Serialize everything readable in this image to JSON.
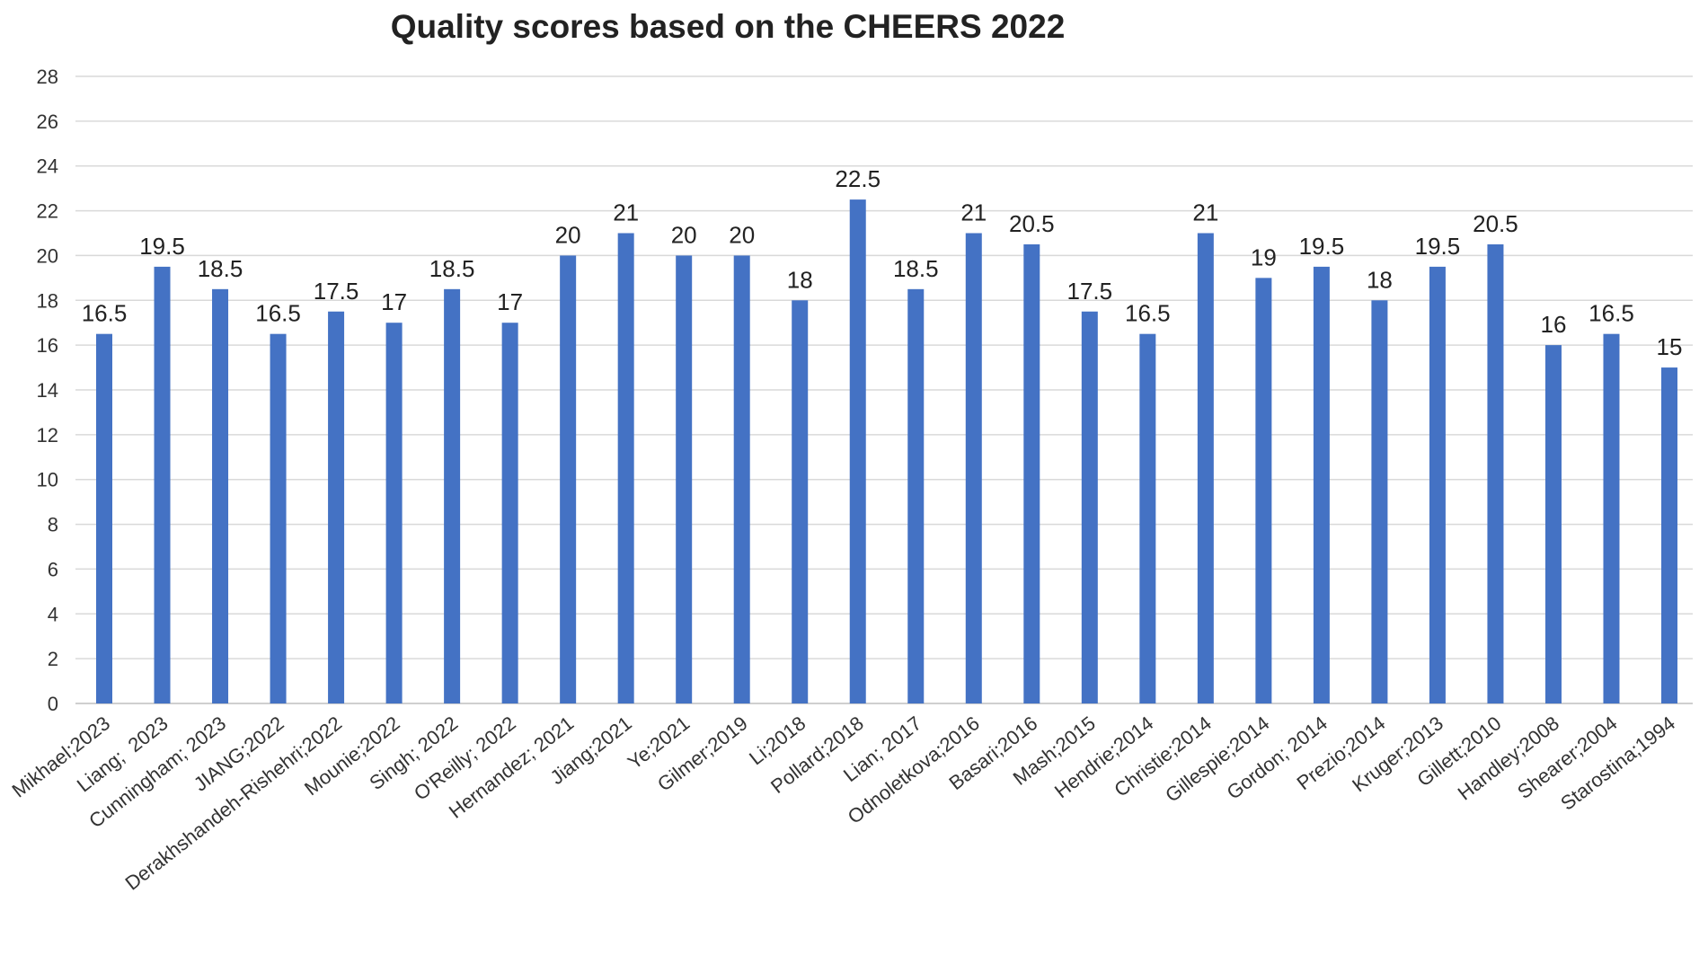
{
  "chart_data": {
    "type": "bar",
    "title": "Quality scores based on the CHEERS 2022",
    "xlabel": "",
    "ylabel": "",
    "ylim": [
      0,
      28
    ],
    "yticks": [
      0,
      2,
      4,
      6,
      8,
      10,
      12,
      14,
      16,
      18,
      20,
      22,
      24,
      26,
      28
    ],
    "grid": true,
    "legend": "none",
    "bar_color": "#4472c4",
    "categories": [
      "Mikhael;2023",
      "Liang;  2023",
      "Cunningham; 2023",
      "JIANG;2022",
      "Derakhshandeh-Rishehri;2022",
      "Mounie;2022",
      "Singh; 2022",
      "O'Reilly; 2022",
      "Hernandez; 2021",
      "Jiang;2021",
      "Ye;2021",
      "Gilmer;2019",
      "Li;2018",
      "Pollard;2018",
      "Lian; 2017",
      "Odnoletkova;2016",
      "Basari;2016",
      "Mash;2015",
      "Hendrie;2014",
      "Christie;2014",
      "Gillespie;2014",
      "Gordon; 2014",
      "Prezio;2014",
      "Kruger;2013",
      "Gillett;2010",
      "Handley;2008",
      "Shearer;2004",
      "Starostina;1994"
    ],
    "values": [
      16.5,
      19.5,
      18.5,
      16.5,
      17.5,
      17,
      18.5,
      17,
      20,
      21,
      20,
      20,
      18,
      22.5,
      18.5,
      21,
      20.5,
      17.5,
      16.5,
      21,
      19,
      19.5,
      18,
      19.5,
      20.5,
      16,
      16.5,
      15
    ]
  }
}
